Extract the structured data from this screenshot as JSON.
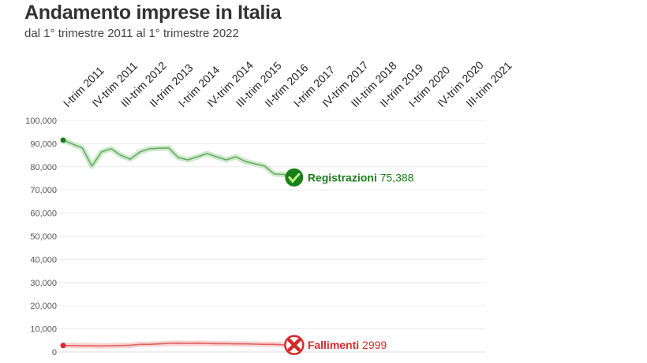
{
  "chart_data": {
    "type": "line",
    "title": "Andamento imprese in Italia",
    "subtitle": "dal 1° trimestre 2011 al 1° trimestre 2022",
    "xlabel": "",
    "ylabel": "",
    "ylim": [
      0,
      100000
    ],
    "yticks": [
      "0",
      "10,000",
      "20,000",
      "30,000",
      "40,000",
      "50,000",
      "60,000",
      "70,000",
      "80,000",
      "90,000",
      "100,000"
    ],
    "xticks": [
      "I-trim 2011",
      "IV-trim 2011",
      "III-trim 2012",
      "II-trim 2013",
      "I-trim 2014",
      "IV-trim 2014",
      "III-trim 2015",
      "II-trim 2016",
      "I-trim 2017",
      "IV-trim 2017",
      "III-trim 2018",
      "II-trim 2019",
      "I-trim 2020",
      "IV-trim 2020",
      "III-trim 2021"
    ],
    "n_quarters": 45,
    "grid": true,
    "series": [
      {
        "name": "Registrazioni",
        "last_label": "75,388",
        "color": "#1a7f1a",
        "icon": "check-circle-icon",
        "values": [
          91500,
          89800,
          88100,
          80300,
          86400,
          87800,
          85000,
          83300,
          86400,
          87800,
          88000,
          88100,
          84000,
          83000,
          84300,
          85700,
          84300,
          83000,
          84300,
          82300,
          81300,
          80300,
          76900,
          76700,
          75388
        ]
      },
      {
        "name": "Fallimenti",
        "last_label": "2999",
        "color": "#d42a2a",
        "icon": "x-circle-icon",
        "values": [
          2800,
          2800,
          2700,
          2700,
          2600,
          2700,
          2800,
          2900,
          3300,
          3300,
          3500,
          3700,
          3800,
          3700,
          3800,
          3700,
          3600,
          3600,
          3500,
          3500,
          3400,
          3300,
          3300,
          3100,
          2999
        ]
      }
    ]
  }
}
